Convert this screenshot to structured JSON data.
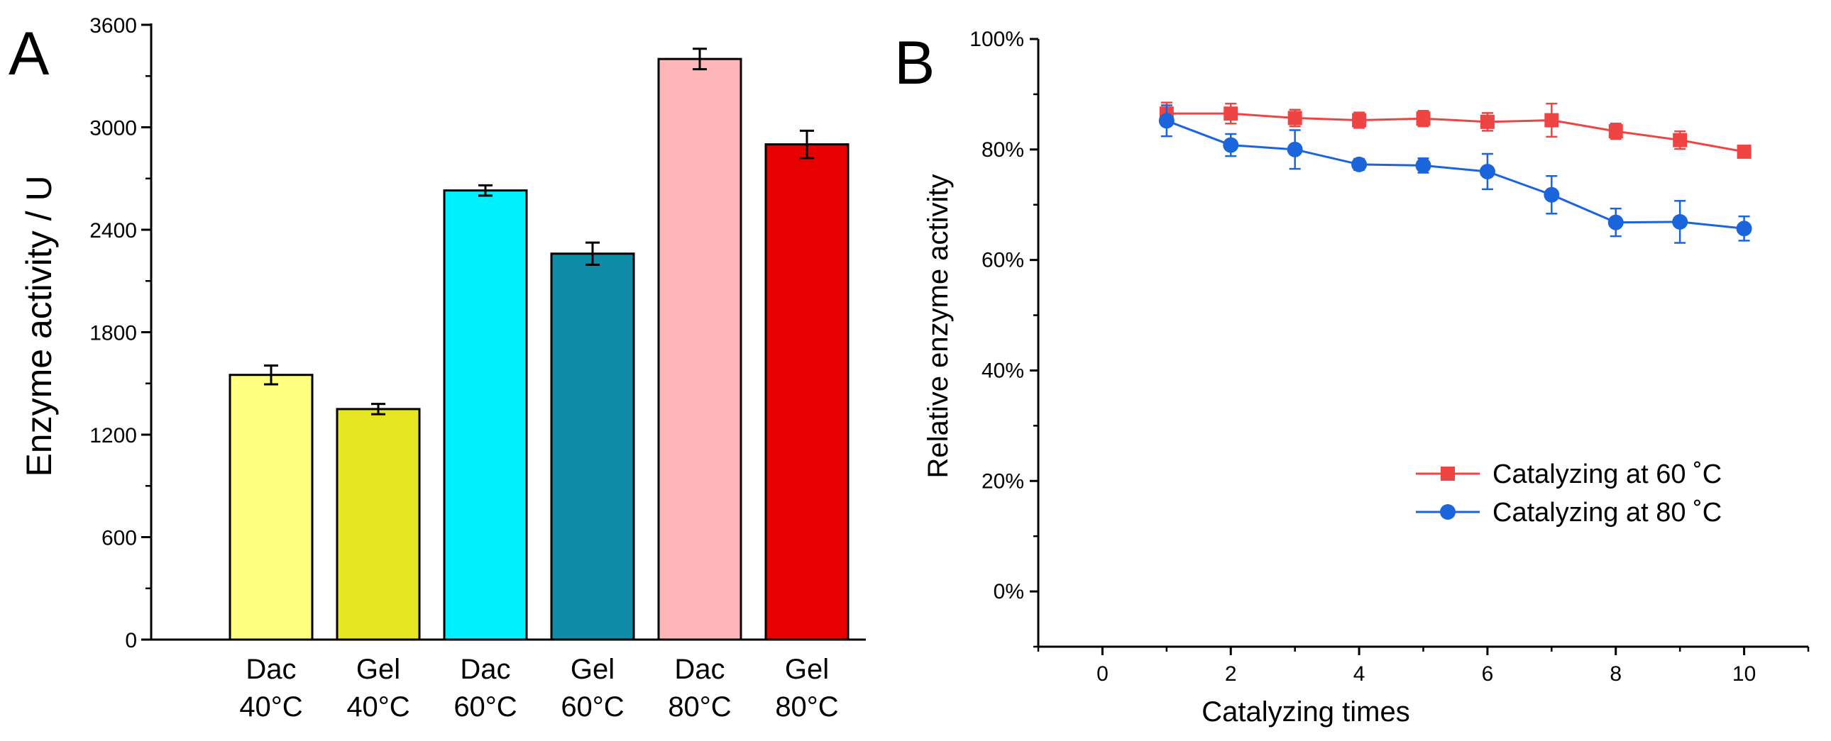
{
  "chart_data": [
    {
      "panel_label": "A",
      "type": "bar",
      "title": "",
      "xlabel": "",
      "ylabel": "Enzyme activity / U",
      "ylim": [
        0,
        3600
      ],
      "yticks": [
        0,
        600,
        1200,
        1800,
        2400,
        3000,
        3600
      ],
      "ytick_labels": [
        "0",
        "600",
        "1200",
        "1800",
        "2400",
        "3000",
        "3600"
      ],
      "categories": [
        {
          "line1": "Dac",
          "line2": "40°C"
        },
        {
          "line1": "Gel",
          "line2": "40°C"
        },
        {
          "line1": "Dac",
          "line2": "60°C"
        },
        {
          "line1": "Gel",
          "line2": "60°C"
        },
        {
          "line1": "Dac",
          "line2": "80°C"
        },
        {
          "line1": "Gel",
          "line2": "80°C"
        }
      ],
      "values": [
        1550,
        1350,
        2630,
        2260,
        3400,
        2900
      ],
      "errors": [
        55,
        30,
        30,
        65,
        60,
        80
      ],
      "colors": [
        "#ffff80",
        "#e6e622",
        "#00f0ff",
        "#0f8ca8",
        "#ffb6b9",
        "#e60000"
      ],
      "grid": false
    },
    {
      "panel_label": "B",
      "type": "line",
      "title": "",
      "xlabel": "Catalyzing times",
      "ylabel": "Relative enzyme activity",
      "xlim": [
        -1,
        11
      ],
      "ylim": [
        -10,
        100
      ],
      "xticks": [
        0,
        2,
        4,
        6,
        8,
        10
      ],
      "xtick_labels": [
        "0",
        "2",
        "4",
        "6",
        "8",
        "10"
      ],
      "yticks": [
        0,
        20,
        40,
        60,
        80,
        100
      ],
      "ytick_labels": [
        "0%",
        "20%",
        "40%",
        "60%",
        "80%",
        "100%"
      ],
      "x": [
        1,
        2,
        3,
        4,
        5,
        6,
        7,
        8,
        9,
        10
      ],
      "series": [
        {
          "name": "Catalyzing at 60 ˚C",
          "marker": "square",
          "color": "#ee4444",
          "values": [
            86.5,
            86.5,
            85.7,
            85.3,
            85.6,
            85.0,
            85.3,
            83.3,
            81.7,
            79.6
          ],
          "errors": [
            2.0,
            1.8,
            1.5,
            1.4,
            1.4,
            1.6,
            3.0,
            1.4,
            1.6,
            0.8
          ]
        },
        {
          "name": "Catalyzing at 80 ˚C",
          "marker": "circle",
          "color": "#1a64dc",
          "values": [
            85.2,
            80.8,
            80.0,
            77.3,
            77.1,
            76.0,
            71.8,
            66.8,
            66.9,
            65.7
          ],
          "errors": [
            2.8,
            2.0,
            3.5,
            1.0,
            1.3,
            3.2,
            3.4,
            2.5,
            3.8,
            2.2
          ]
        }
      ],
      "legend_position": "lower-right",
      "grid": false
    }
  ]
}
